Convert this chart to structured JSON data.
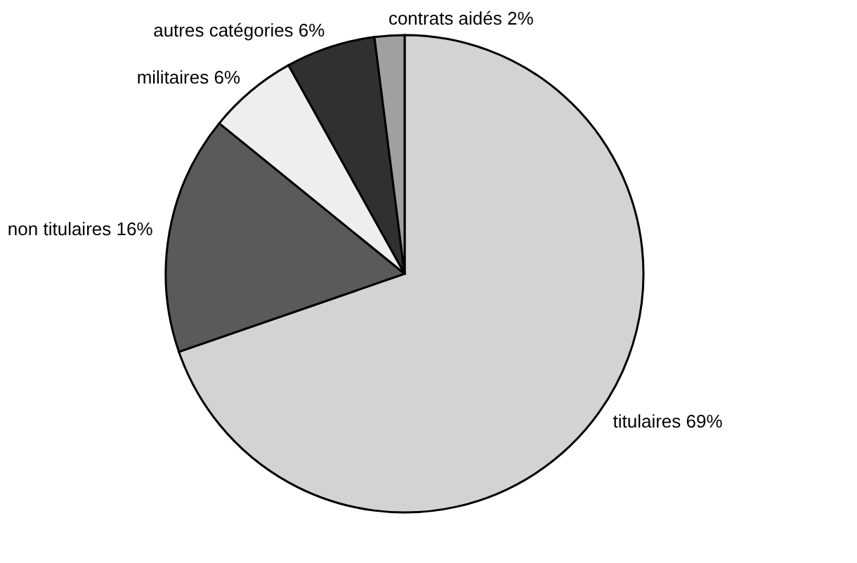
{
  "chart_data": {
    "type": "pie",
    "categories": [
      "titulaires",
      "non titulaires",
      "militaires",
      "autres catégories",
      "contrats aidés"
    ],
    "values": [
      69,
      16,
      6,
      6,
      2
    ],
    "value_labels": [
      "69%",
      "16%",
      "6%",
      "6%",
      "2%"
    ],
    "colors": [
      "#d3d3d3",
      "#5a5a5a",
      "#eeeeee",
      "#303030",
      "#a0a0a0"
    ],
    "legend": false
  }
}
